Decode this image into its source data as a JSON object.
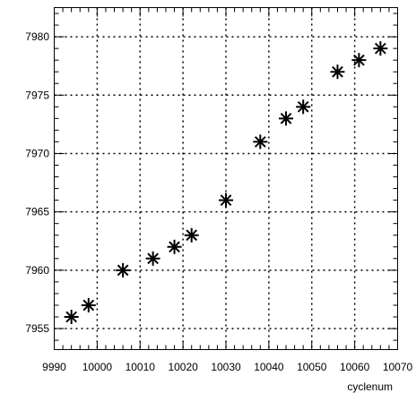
{
  "chart_data": {
    "type": "scatter",
    "title": "",
    "xlabel": "cyclenum",
    "ylabel": "",
    "xlim": [
      9990,
      10070
    ],
    "ylim": [
      7953.2,
      7982.5
    ],
    "grid": true,
    "marker": "asterisk",
    "x_ticks": [
      9990,
      10000,
      10010,
      10020,
      10030,
      10040,
      10050,
      10060,
      10070
    ],
    "y_ticks": [
      7955,
      7960,
      7965,
      7970,
      7975,
      7980
    ],
    "x_tick_labels": [
      "9990",
      "10000",
      "10010",
      "10020",
      "10030",
      "10040",
      "10050",
      "10060",
      "10070"
    ],
    "y_tick_labels": [
      "7955",
      "7960",
      "7965",
      "7970",
      "7975",
      "7980"
    ],
    "points": [
      {
        "x": 9994,
        "y": 7956
      },
      {
        "x": 9998,
        "y": 7957
      },
      {
        "x": 10006,
        "y": 7960
      },
      {
        "x": 10013,
        "y": 7961
      },
      {
        "x": 10018,
        "y": 7962
      },
      {
        "x": 10022,
        "y": 7963
      },
      {
        "x": 10030,
        "y": 7966
      },
      {
        "x": 10038,
        "y": 7971
      },
      {
        "x": 10044,
        "y": 7973
      },
      {
        "x": 10048,
        "y": 7974
      },
      {
        "x": 10056,
        "y": 7977
      },
      {
        "x": 10061,
        "y": 7978
      },
      {
        "x": 10066,
        "y": 7979
      }
    ]
  }
}
